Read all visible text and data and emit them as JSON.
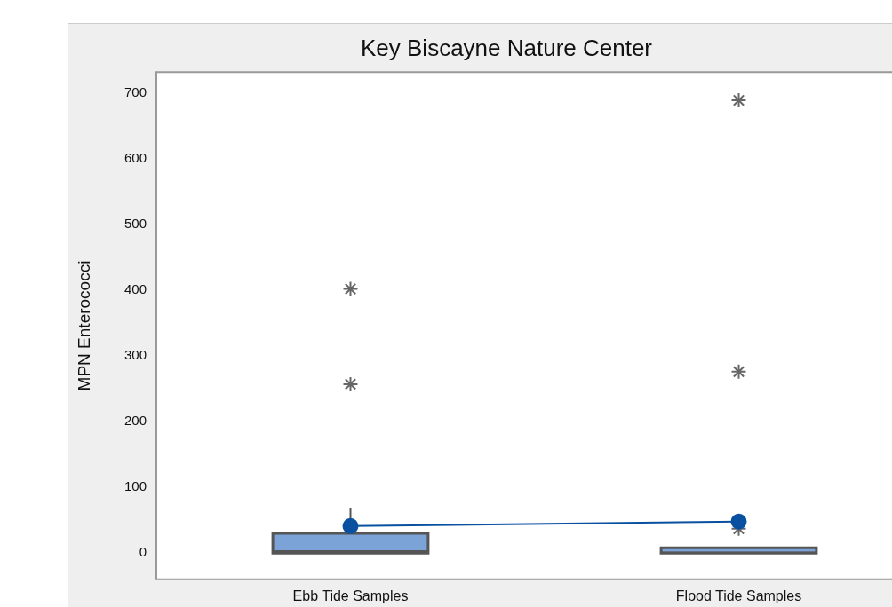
{
  "chart_data": {
    "type": "box",
    "title": "Key Biscayne Nature Center",
    "ylabel": "MPN Enterococci",
    "categories": [
      "Ebb Tide Samples",
      "Flood Tide Samples"
    ],
    "series": [
      {
        "color": "#7ba3d8",
        "boxes": [
          {
            "low": 0,
            "q1": 0,
            "median": 3,
            "q3": 30,
            "high": 68,
            "outliers": [
              402,
              257
            ]
          },
          {
            "low": 0,
            "q1": 0,
            "median": 1,
            "q3": 8,
            "high": 8,
            "outliers": [
              689,
              276,
              37
            ]
          }
        ]
      },
      {
        "type": "line",
        "color": "#0a50a0",
        "marker": "circle",
        "values": [
          41,
          48
        ]
      }
    ],
    "ylim": [
      -40,
      732
    ],
    "yticks": [
      0,
      100,
      200,
      300,
      400,
      500,
      600,
      700
    ]
  }
}
